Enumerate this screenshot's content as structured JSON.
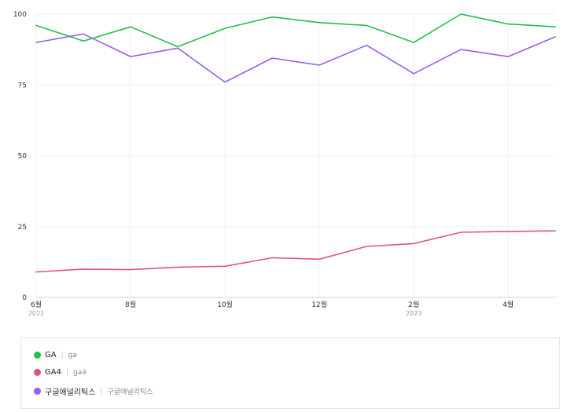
{
  "chart_data": {
    "type": "line",
    "x": [
      "2022-06",
      "2022-07",
      "2022-08",
      "2022-09",
      "2022-10",
      "2022-11",
      "2022-12",
      "2023-01",
      "2023-02",
      "2023-03",
      "2023-04",
      "2023-05"
    ],
    "series": [
      {
        "name": "GA",
        "term": "ga",
        "color": "#1fc04a",
        "values": [
          96,
          90.5,
          95.5,
          88.5,
          95,
          99,
          97,
          96,
          90,
          100,
          96.5,
          95.5
        ]
      },
      {
        "name": "GA4",
        "term": "ga4",
        "color": "#e0508f",
        "values": [
          9,
          10,
          9.8,
          10.7,
          11,
          14,
          13.5,
          18,
          19,
          23,
          23.3,
          23.5
        ]
      },
      {
        "name": "구글애널리틱스",
        "term": "구글애널리틱스",
        "color": "#9a5cf0",
        "values": [
          90,
          93,
          85,
          88,
          76,
          84.5,
          82,
          89,
          79,
          87.5,
          85,
          92
        ]
      }
    ],
    "y_ticks": [
      "100",
      "75",
      "50",
      "25",
      "0"
    ],
    "ylim": [
      0,
      100
    ],
    "x_ticks": [
      {
        "label": "6월",
        "sub": "2022",
        "index": 0
      },
      {
        "label": "8월",
        "sub": "",
        "index": 2
      },
      {
        "label": "10월",
        "sub": "",
        "index": 4
      },
      {
        "label": "12월",
        "sub": "",
        "index": 6
      },
      {
        "label": "2월",
        "sub": "2023",
        "index": 8
      },
      {
        "label": "4월",
        "sub": "",
        "index": 10
      }
    ],
    "grid": true,
    "legend_position": "bottom"
  }
}
